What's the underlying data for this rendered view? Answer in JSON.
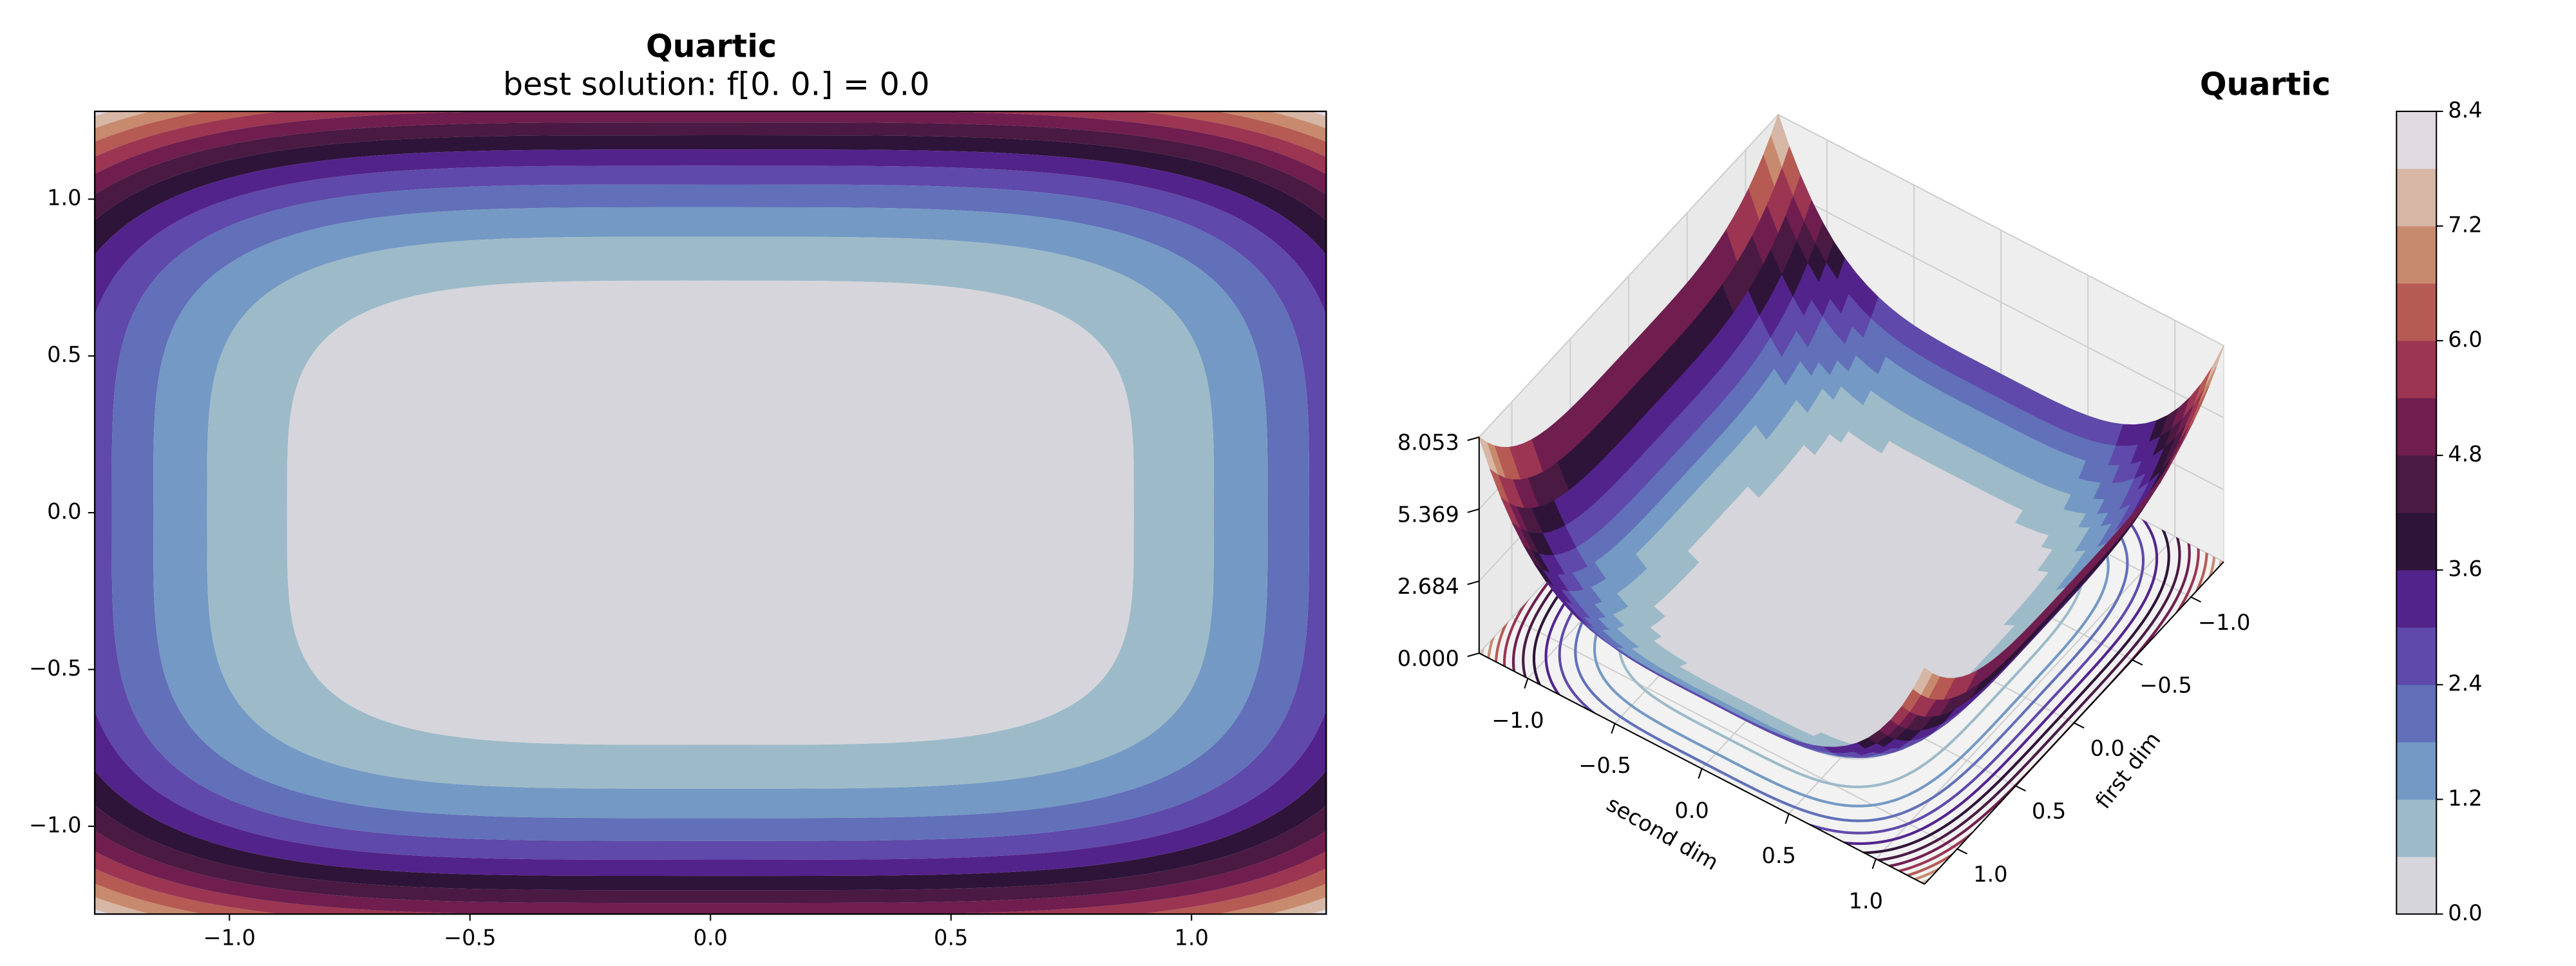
{
  "chart_data": [
    {
      "type": "contourf",
      "title": "Quartic",
      "subtitle": "best solution: f[0. 0.] = 0.0",
      "xlim": [
        -1.28,
        1.28
      ],
      "ylim": [
        -1.28,
        1.28
      ],
      "xticks": [
        {
          "value": -1,
          "label": "−1.0"
        },
        {
          "value": -0.5,
          "label": "−0.5"
        },
        {
          "value": 0,
          "label": "0.0"
        },
        0.5,
        {
          "value": 1,
          "label": "1.0"
        }
      ],
      "yticks": [
        {
          "value": -1,
          "label": "−1.0"
        },
        {
          "value": -0.5,
          "label": "−0.5"
        },
        {
          "value": 0,
          "label": "0.0"
        },
        0.5,
        {
          "value": 1,
          "label": "1.0"
        }
      ],
      "levels": [
        0,
        0.6,
        1.2,
        1.8,
        2.4,
        3.0,
        3.6,
        4.2,
        4.8,
        5.4,
        6.0,
        6.6,
        7.2,
        7.8,
        8.4
      ],
      "colors": [
        "#d5d5db",
        "#9dbac8",
        "#7499c4",
        "#6170b9",
        "#5f49aa",
        "#53238c",
        "#2f1439",
        "#4a1a43",
        "#6f1e4f",
        "#9b3552",
        "#b65a54",
        "#c88a6e",
        "#d6b7a6",
        "#e1d9e2"
      ]
    },
    {
      "type": "surface3d",
      "title": "Quartic",
      "xlabel": "first dim",
      "ylabel": "second dim",
      "xlim": [
        -1.28,
        1.28
      ],
      "ylim": [
        -1.28,
        1.28
      ],
      "zlim": [
        0,
        8.053
      ],
      "xticks": [
        {
          "value": -1,
          "label": "−1.0"
        },
        {
          "value": -0.5,
          "label": "−0.5"
        },
        {
          "value": 0,
          "label": "0.0"
        },
        0.5,
        {
          "value": 1,
          "label": "1.0"
        }
      ],
      "yticks": [
        {
          "value": -1,
          "label": "−1.0"
        },
        {
          "value": -0.5,
          "label": "−0.5"
        },
        {
          "value": 0,
          "label": "0.0"
        },
        0.5,
        {
          "value": 1,
          "label": "1.0"
        }
      ],
      "zticks": [
        {
          "value": 0,
          "label": "0.000"
        },
        2.684,
        5.369,
        8.053
      ],
      "levels": [
        0,
        0.6,
        1.2,
        1.8,
        2.4,
        3.0,
        3.6,
        4.2,
        4.8,
        5.4,
        6.0,
        6.6,
        7.2,
        7.8,
        8.4
      ],
      "colors": [
        "#d5d5db",
        "#9dbac8",
        "#7499c4",
        "#6170b9",
        "#5f49aa",
        "#53238c",
        "#2f1439",
        "#4a1a43",
        "#6f1e4f",
        "#9b3552",
        "#b65a54",
        "#c88a6e",
        "#d6b7a6",
        "#e1d9e2"
      ],
      "colorbar_ticks": [
        {
          "value": 0,
          "label": "0.0"
        },
        1.2,
        2.4,
        3.6,
        4.8,
        {
          "value": 6.0,
          "label": "6.0"
        },
        7.2,
        8.4
      ]
    }
  ]
}
